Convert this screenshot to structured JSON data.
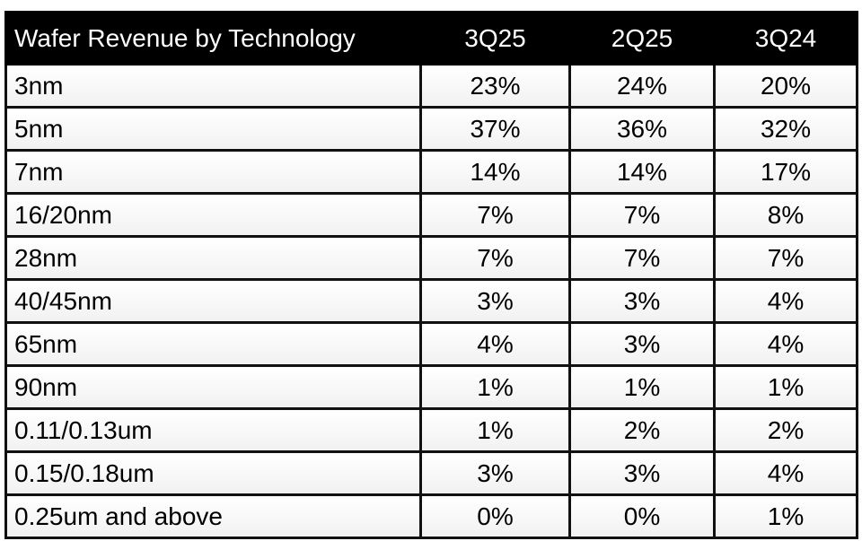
{
  "table": {
    "header": [
      "Wafer Revenue by Technology",
      "3Q25",
      "2Q25",
      "3Q24"
    ],
    "rows": [
      [
        "3nm",
        "23%",
        "24%",
        "20%"
      ],
      [
        "5nm",
        "37%",
        "36%",
        "32%"
      ],
      [
        "7nm",
        "14%",
        "14%",
        "17%"
      ],
      [
        "16/20nm",
        "7%",
        "7%",
        "8%"
      ],
      [
        "28nm",
        "7%",
        "7%",
        "7%"
      ],
      [
        "40/45nm",
        "3%",
        "3%",
        "4%"
      ],
      [
        "65nm",
        "4%",
        "3%",
        "4%"
      ],
      [
        "90nm",
        "1%",
        "1%",
        "1%"
      ],
      [
        "0.11/0.13um",
        "1%",
        "2%",
        "2%"
      ],
      [
        "0.15/0.18um",
        "3%",
        "3%",
        "4%"
      ],
      [
        "0.25um and above",
        "0%",
        "0%",
        "1%"
      ]
    ]
  }
}
